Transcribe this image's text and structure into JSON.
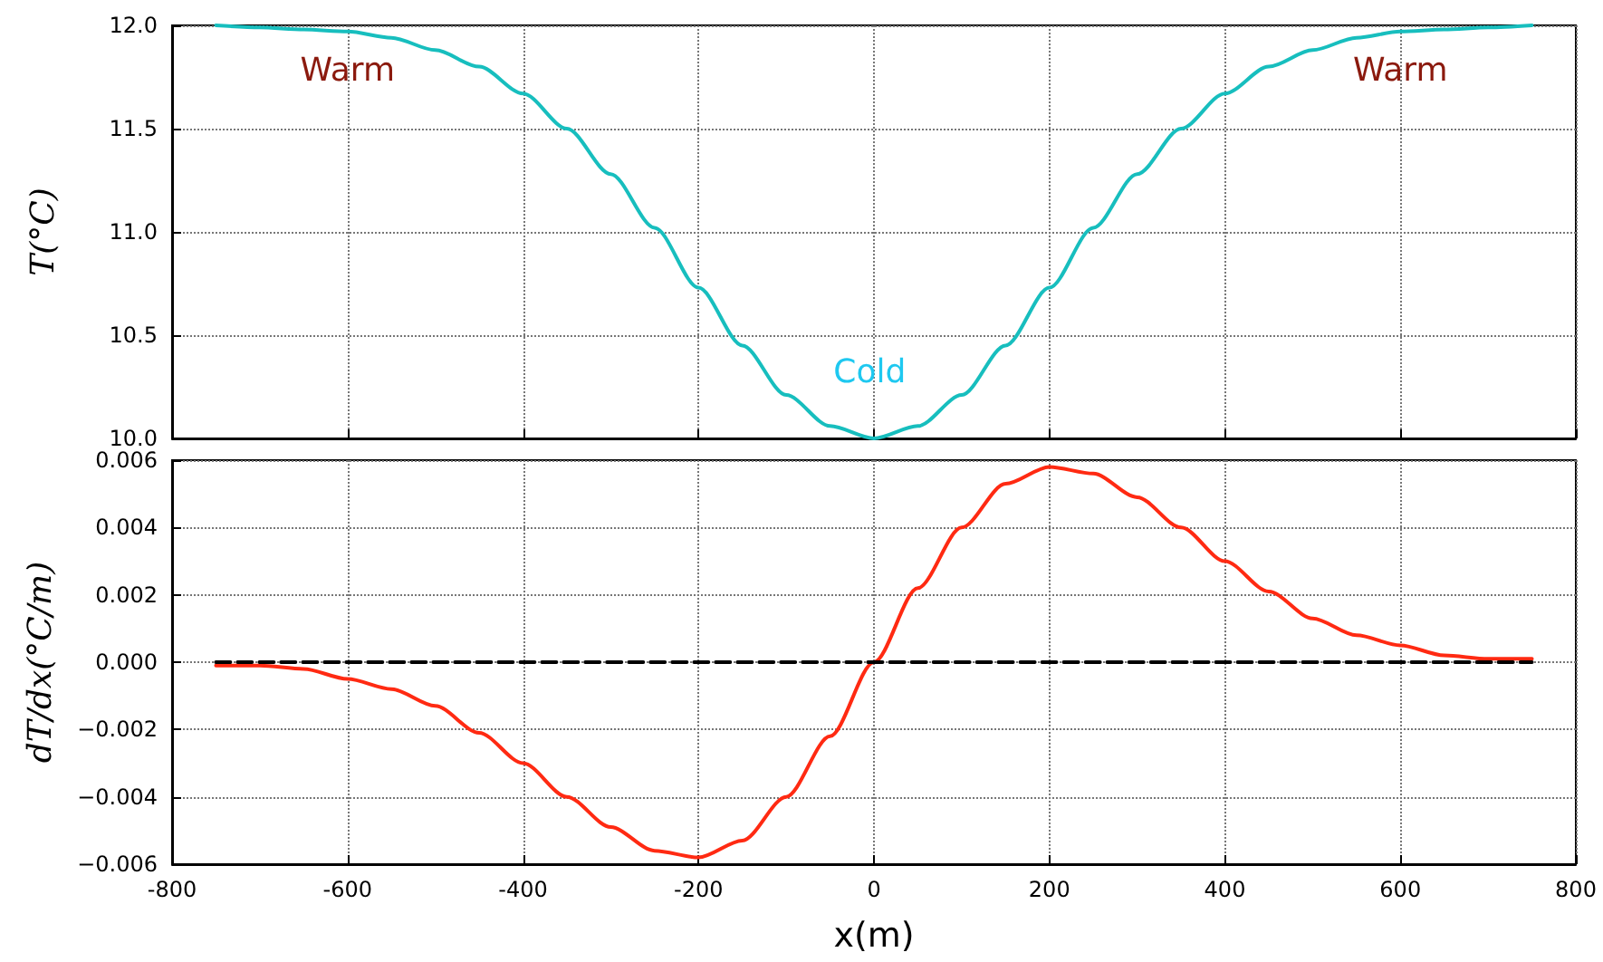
{
  "chart_data": [
    {
      "type": "line",
      "ylabel": "T(°C)",
      "xlim": [
        -800,
        800
      ],
      "xticks": [
        -800,
        -600,
        -400,
        -200,
        0,
        200,
        400,
        600,
        800
      ],
      "ylim": [
        10,
        12
      ],
      "yticks": [
        {
          "value": 10,
          "label": "10.0"
        },
        {
          "value": 10.5,
          "label": "10.5"
        },
        {
          "value": 11,
          "label": "11.0"
        },
        {
          "value": 11.5,
          "label": "11.5"
        },
        {
          "value": 12,
          "label": "12.0"
        }
      ],
      "tick_labels": "y",
      "grid": true,
      "marker": "none",
      "line_style": "solid",
      "annotations": [
        "Warm",
        "Warm",
        "Cold"
      ],
      "series": [
        {
          "color": "#17bebe",
          "x": [
            -750,
            -700,
            -650,
            -600,
            -550,
            -500,
            -450,
            -400,
            -350,
            -300,
            -250,
            -200,
            -150,
            -100,
            -50,
            0,
            50,
            100,
            150,
            200,
            250,
            300,
            350,
            400,
            450,
            500,
            550,
            600,
            650,
            700,
            750
          ],
          "values": [
            12.0,
            11.99,
            11.98,
            11.97,
            11.94,
            11.88,
            11.8,
            11.67,
            11.5,
            11.28,
            11.02,
            10.73,
            10.45,
            10.21,
            10.06,
            10.0,
            10.06,
            10.21,
            10.45,
            10.73,
            11.02,
            11.28,
            11.5,
            11.67,
            11.8,
            11.88,
            11.94,
            11.97,
            11.98,
            11.99,
            12.0
          ]
        }
      ]
    },
    {
      "type": "line",
      "xlabel": "x(m)",
      "ylabel": "dT/dx(°C/m)",
      "xlim": [
        -800,
        800
      ],
      "xticks": [
        -800,
        -600,
        -400,
        -200,
        0,
        200,
        400,
        600,
        800
      ],
      "ylim": [
        -0.006,
        0.006
      ],
      "yticks": [
        {
          "value": -0.006,
          "label": "−0.006"
        },
        {
          "value": -0.004,
          "label": "−0.004"
        },
        {
          "value": -0.002,
          "label": "−0.002"
        },
        {
          "value": 0,
          "label": "0.000"
        },
        {
          "value": 0.002,
          "label": "0.002"
        },
        {
          "value": 0.004,
          "label": "0.004"
        },
        {
          "value": 0.006,
          "label": "0.006"
        }
      ],
      "grid": true,
      "marker": "none",
      "line_style": "solid",
      "series": [
        {
          "color": "#ff2a12",
          "x": [
            -750,
            -700,
            -650,
            -600,
            -550,
            -500,
            -450,
            -400,
            -350,
            -300,
            -250,
            -200,
            -150,
            -100,
            -50,
            0,
            50,
            100,
            150,
            200,
            250,
            300,
            350,
            400,
            450,
            500,
            550,
            600,
            650,
            700,
            750
          ],
          "values": [
            -0.0001,
            -0.0001,
            -0.0002,
            -0.0005,
            -0.0008,
            -0.0013,
            -0.0021,
            -0.003,
            -0.004,
            -0.0049,
            -0.0056,
            -0.0058,
            -0.0053,
            -0.004,
            -0.0022,
            0,
            0.0022,
            0.004,
            0.0053,
            0.0058,
            0.0056,
            0.0049,
            0.004,
            0.003,
            0.0021,
            0.0013,
            0.0008,
            0.0005,
            0.0002,
            0.0001,
            0.0001
          ]
        },
        {
          "color": "#000000",
          "line_style": "dashed",
          "x": [
            -750,
            750
          ],
          "values": [
            0,
            0
          ]
        }
      ]
    }
  ]
}
